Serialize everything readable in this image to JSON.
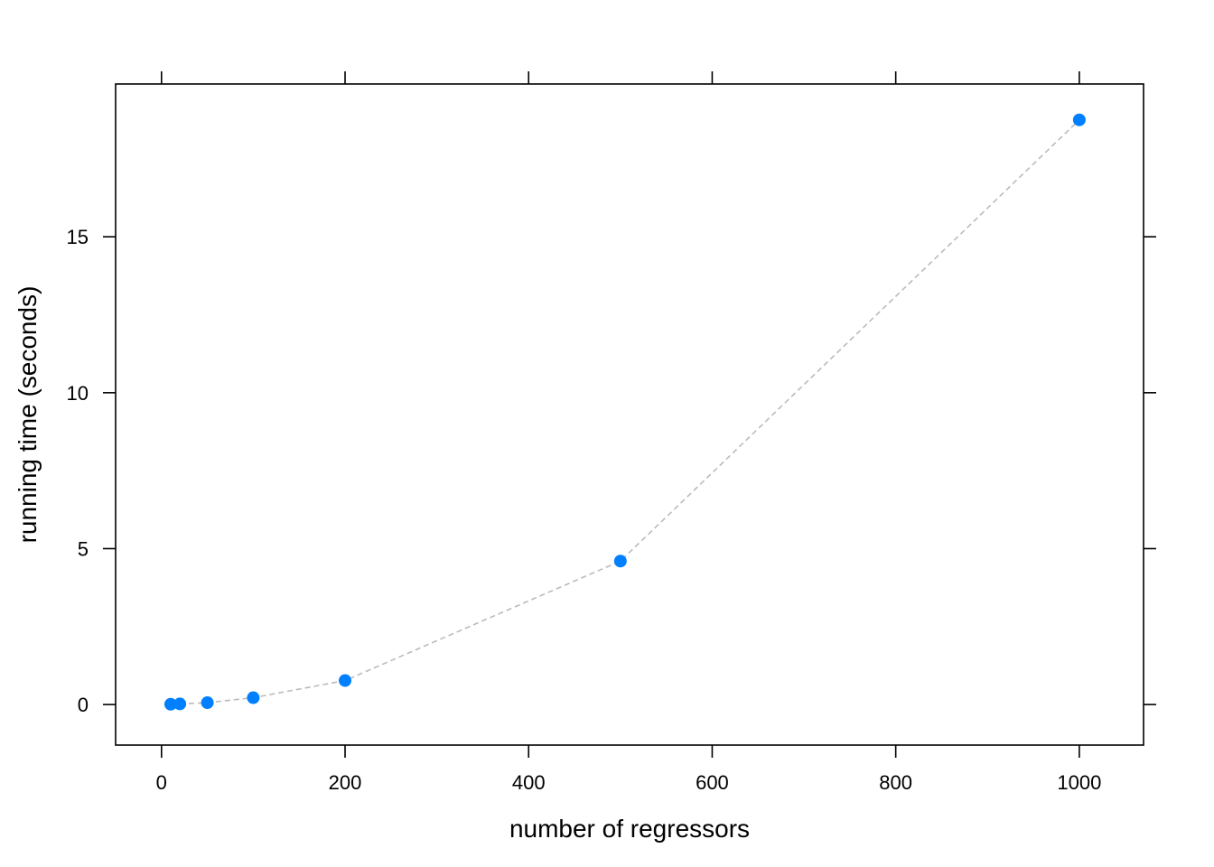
{
  "chart_data": {
    "type": "scatter",
    "title": "",
    "xlabel": "number of regressors",
    "ylabel": "running time (seconds)",
    "xlim": [
      -50,
      1070
    ],
    "ylim": [
      -1.3,
      19.9
    ],
    "x_ticks": [
      0,
      200,
      400,
      600,
      800,
      1000
    ],
    "x_tick_labels": [
      "0",
      "200",
      "400",
      "600",
      "800",
      "1000"
    ],
    "y_ticks": [
      0,
      5,
      10,
      15
    ],
    "y_tick_labels": [
      "0",
      "5",
      "10",
      "15"
    ],
    "grid": false,
    "legend": "none",
    "series": [
      {
        "x": [
          10,
          20,
          50,
          100,
          200,
          500,
          1000
        ],
        "y": [
          0.01,
          0.02,
          0.06,
          0.22,
          0.77,
          4.6,
          18.75
        ],
        "point_color": "#0080FF",
        "line_color": "#BBBBBB",
        "line_style": "dashed"
      }
    ]
  }
}
